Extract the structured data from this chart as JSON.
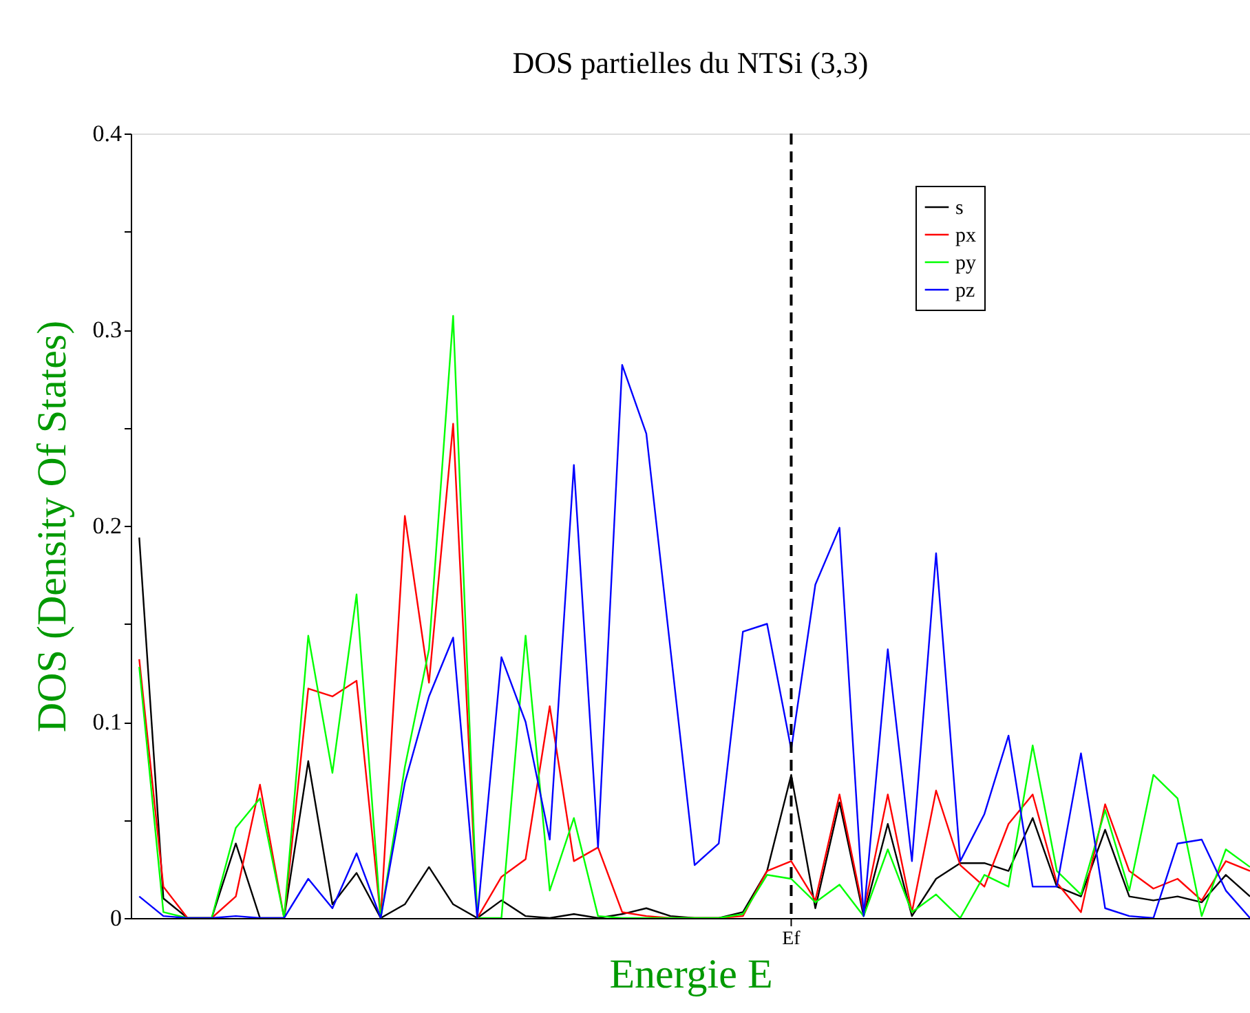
{
  "chart_data": {
    "type": "line",
    "title": "DOS partielles du NTSi (3,3)",
    "xlabel": "Energie E",
    "ylabel": "DOS (Density Of States)",
    "categories": [
      null,
      null,
      null,
      null,
      null,
      null,
      null,
      null,
      null,
      null,
      null,
      null,
      null,
      null,
      null,
      null,
      null,
      null,
      null,
      null,
      null,
      null,
      null,
      null,
      null,
      null,
      null,
      null,
      null,
      null,
      null,
      null,
      null,
      null,
      null,
      null,
      null,
      null,
      null,
      null,
      null,
      null,
      null,
      null,
      null,
      null,
      null
    ],
    "ylim": [
      0,
      0.4
    ],
    "yticks": [
      0,
      {
        "value": 0.05,
        "label": null
      },
      0.1,
      {
        "value": 0.15,
        "label": null
      },
      0.2,
      {
        "value": 0.25,
        "label": null
      },
      0.3,
      {
        "value": 0.35,
        "label": null
      },
      0.4
    ],
    "series": [
      {
        "name": "s",
        "color": "#000000",
        "values": [
          0.194,
          0.01,
          0,
          0,
          0.038,
          0,
          0,
          0.08,
          0.007,
          0.023,
          0,
          0.007,
          0.026,
          0.007,
          0,
          0.009,
          0.001,
          0,
          0.002,
          0,
          0.002,
          0.005,
          0.001,
          0,
          0,
          0.003,
          0.024,
          0.073,
          0.005,
          0.059,
          0.001,
          0.048,
          0.001,
          0.02,
          0.028,
          0.028,
          0.024,
          0.051,
          0.016,
          0.011,
          0.045,
          0.011,
          0.009,
          0.011,
          0.008,
          0.022,
          0.011
        ]
      },
      {
        "name": "px",
        "color": "#ff0000",
        "values": [
          0.132,
          0.016,
          0,
          0,
          0.011,
          0.068,
          0,
          0.117,
          0.113,
          0.121,
          0,
          0.205,
          0.12,
          0.252,
          0,
          0.021,
          0.03,
          0.108,
          0.029,
          0.036,
          0.003,
          0.001,
          0,
          0,
          0,
          0.001,
          0.024,
          0.029,
          0.009,
          0.063,
          0.003,
          0.063,
          0.003,
          0.065,
          0.027,
          0.016,
          0.048,
          0.063,
          0.018,
          0.003,
          0.058,
          0.024,
          0.015,
          0.02,
          0.009,
          0.029,
          0.024
        ]
      },
      {
        "name": "py",
        "color": "#00ff00",
        "values": [
          0.128,
          0.003,
          0,
          0,
          0.046,
          0.061,
          0,
          0.144,
          0.074,
          0.165,
          0,
          0.077,
          0.137,
          0.307,
          0,
          0,
          0.144,
          0.014,
          0.051,
          0.001,
          0,
          0,
          0,
          0,
          0,
          0.002,
          0.022,
          0.02,
          0.008,
          0.017,
          0.001,
          0.035,
          0.003,
          0.012,
          0,
          0.022,
          0.016,
          0.088,
          0.024,
          0.012,
          0.055,
          0.014,
          0.073,
          0.061,
          0.001,
          0.035,
          0.026
        ]
      },
      {
        "name": "pz",
        "color": "#0000ff",
        "values": [
          0.011,
          0.001,
          0,
          0,
          0.001,
          0,
          0,
          0.02,
          0.005,
          0.033,
          0,
          0.069,
          0.113,
          0.143,
          0,
          0.133,
          0.1,
          0.04,
          0.231,
          0.036,
          0.282,
          0.247,
          0.137,
          0.027,
          0.038,
          0.146,
          0.15,
          0.086,
          0.17,
          0.199,
          0.001,
          0.137,
          0.029,
          0.186,
          0.029,
          0.053,
          0.093,
          0.016,
          0.016,
          0.084,
          0.005,
          0.001,
          0,
          0.038,
          0.04,
          0.014,
          0
        ]
      }
    ],
    "annotations": [
      "Ef"
    ],
    "legend": "top right",
    "grid": false,
    "marker": "none",
    "line_style": "solid"
  }
}
